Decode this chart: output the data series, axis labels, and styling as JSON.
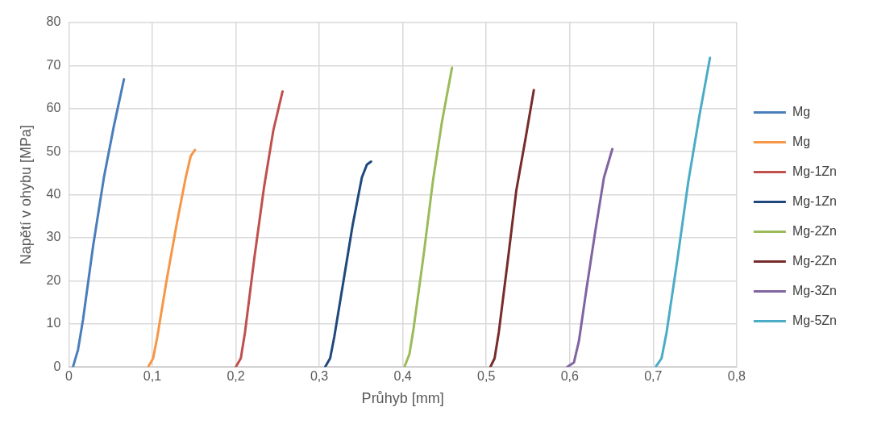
{
  "chart_data": {
    "type": "line",
    "xlabel": "Průhyb [mm]",
    "ylabel": "Napětí v ohybu [MPa]",
    "xlim": [
      0,
      0.8
    ],
    "xticks": [
      0,
      {
        "value": 0.1,
        "label": "0,1"
      },
      {
        "value": 0.2,
        "label": "0,2"
      },
      {
        "value": 0.3,
        "label": "0,3"
      },
      {
        "value": 0.4,
        "label": "0,4"
      },
      {
        "value": 0.5,
        "label": "0,5"
      },
      {
        "value": 0.6,
        "label": "0,6"
      },
      {
        "value": 0.7,
        "label": "0,7"
      },
      {
        "value": 0.8,
        "label": "0,8"
      }
    ],
    "ylim": [
      0,
      80
    ],
    "yticks": [
      0,
      10,
      20,
      30,
      40,
      50,
      60,
      70,
      80
    ],
    "grid": true,
    "legend": "right",
    "marker": "none",
    "line_style": "solid",
    "series": [
      {
        "name": "Mg",
        "color": "#4a7ebb",
        "x": [
          0.005,
          0.011,
          0.017,
          0.029,
          0.042,
          0.054,
          0.066
        ],
        "values": [
          0,
          4,
          11,
          28,
          44,
          56,
          66.8
        ]
      },
      {
        "name": "Mg",
        "color": "#f79646",
        "x": [
          0.095,
          0.101,
          0.106,
          0.117,
          0.129,
          0.14,
          0.146,
          0.151
        ],
        "values": [
          0,
          2,
          7,
          20,
          33,
          44,
          49,
          50.4
        ]
      },
      {
        "name": "Mg-1Zn",
        "color": "#c0504d",
        "x": [
          0.2,
          0.206,
          0.211,
          0.222,
          0.234,
          0.245,
          0.256
        ],
        "values": [
          0,
          2,
          8,
          25,
          42,
          55,
          64
        ]
      },
      {
        "name": "Mg-1Zn",
        "color": "#1f497d",
        "x": [
          0.307,
          0.313,
          0.318,
          0.329,
          0.34,
          0.351,
          0.357,
          0.362
        ],
        "values": [
          0,
          2,
          7,
          20,
          33,
          44,
          47,
          47.7
        ]
      },
      {
        "name": "Mg-2Zn",
        "color": "#9bbb59",
        "x": [
          0.402,
          0.408,
          0.413,
          0.425,
          0.436,
          0.447,
          0.459
        ],
        "values": [
          0,
          3,
          9,
          26,
          43,
          57,
          69.5
        ]
      },
      {
        "name": "Mg-2Zn",
        "color": "#772c2a",
        "x": [
          0.505,
          0.51,
          0.515,
          0.526,
          0.536,
          0.547,
          0.557
        ],
        "values": [
          0,
          2,
          8,
          25,
          41,
          53,
          64.3
        ]
      },
      {
        "name": "Mg-3Zn",
        "color": "#8064a2",
        "x": [
          0.597,
          0.605,
          0.611,
          0.62,
          0.631,
          0.641,
          0.651
        ],
        "values": [
          0,
          1,
          6,
          18,
          32,
          44,
          50.6
        ]
      },
      {
        "name": "Mg-5Zn",
        "color": "#4bacc6",
        "x": [
          0.703,
          0.71,
          0.716,
          0.729,
          0.742,
          0.755,
          0.768
        ],
        "values": [
          0,
          2,
          8,
          25,
          43,
          58,
          71.8
        ]
      }
    ]
  }
}
